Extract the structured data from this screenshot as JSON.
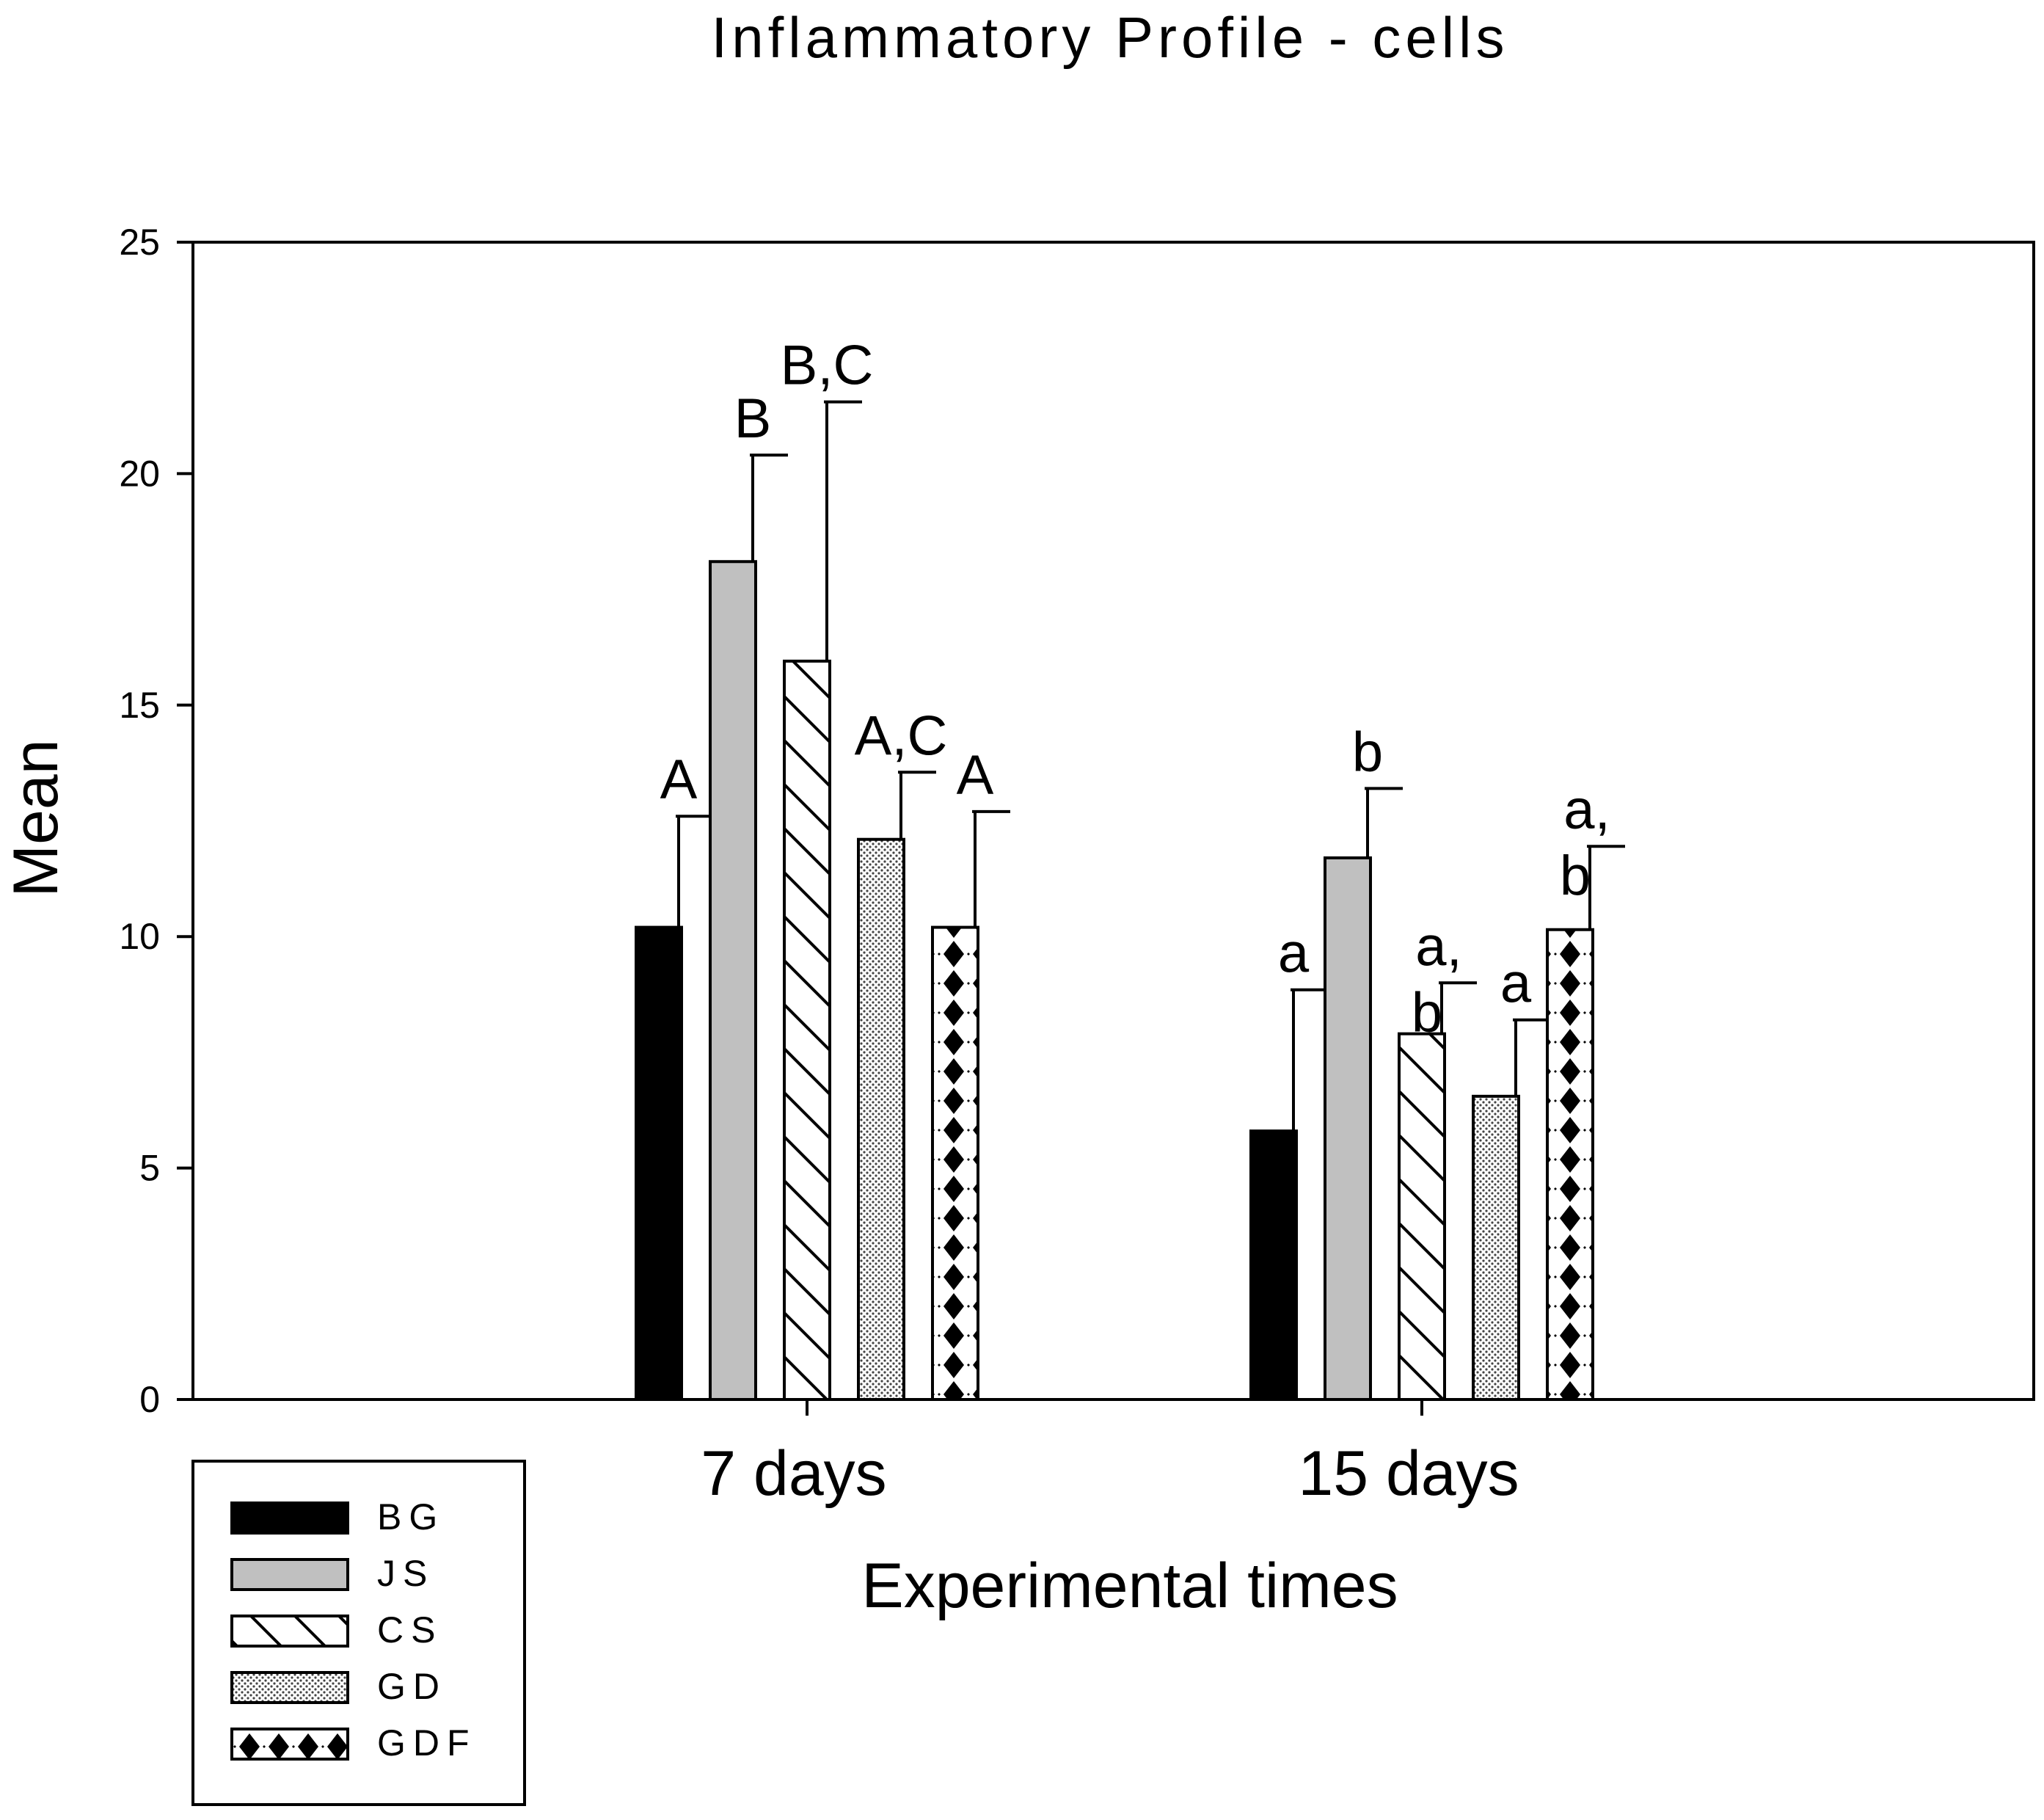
{
  "chart_data": {
    "type": "bar",
    "title": "Inflammatory Profile - cells",
    "xlabel": "Experimental times",
    "ylabel": "Mean",
    "categories": [
      "7 days",
      "15 days"
    ],
    "ylim": [
      0,
      25
    ],
    "yticks": [
      0,
      5,
      10,
      15,
      20,
      25
    ],
    "grid": false,
    "legend_position": "bottom-left, outside axes",
    "series": [
      {
        "name": "BG",
        "pattern": "solid-black",
        "values": [
          10.2,
          5.8
        ],
        "errors": [
          2.4,
          3.05
        ],
        "labels": [
          "A",
          "a"
        ]
      },
      {
        "name": "JS",
        "pattern": "solid-gray",
        "values": [
          18.1,
          11.7
        ],
        "errors": [
          2.3,
          1.5
        ],
        "labels": [
          "B",
          "b"
        ]
      },
      {
        "name": "CS",
        "pattern": "diagonal",
        "values": [
          15.95,
          7.9
        ],
        "errors": [
          5.6,
          1.1
        ],
        "labels": [
          "B,C",
          "a,\nb"
        ]
      },
      {
        "name": "GD",
        "pattern": "dotted",
        "values": [
          12.1,
          6.55
        ],
        "errors": [
          1.45,
          1.65
        ],
        "labels": [
          "A,C",
          "a"
        ]
      },
      {
        "name": "GDF",
        "pattern": "diamonds",
        "values": [
          10.2,
          10.15
        ],
        "errors": [
          2.5,
          1.8
        ],
        "labels": [
          "A",
          "a,\nb"
        ]
      }
    ]
  }
}
